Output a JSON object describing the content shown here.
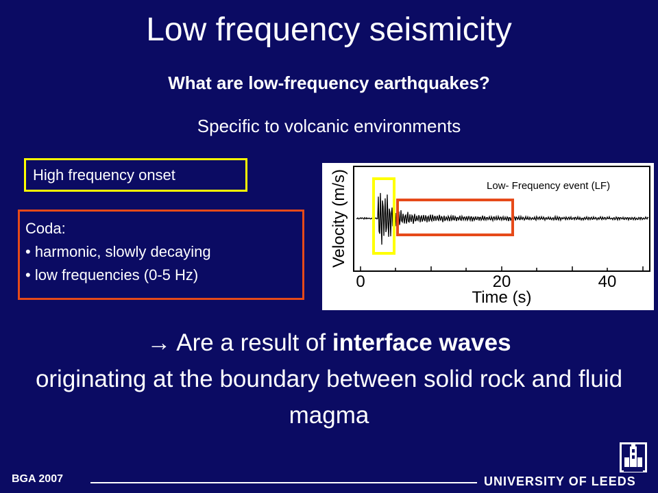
{
  "slide": {
    "title": "Low frequency seismicity",
    "subtitle": "What are low-frequency earthquakes?",
    "lead": "Specific to volcanic environments",
    "onset_box": {
      "label": "High frequency onset",
      "border_color": "#ffff00"
    },
    "coda_box": {
      "heading": "Coda:",
      "items": [
        "• harmonic, slowly decaying",
        "• low frequencies (0-5 Hz)"
      ],
      "border_color": "#e64a19"
    },
    "conclusion": {
      "arrow": "→",
      "prefix": "Are a result of ",
      "emphasis": "interface waves",
      "suffix": "originating at the boundary between solid rock and fluid magma"
    }
  },
  "seismogram": {
    "annotation": "Low- Frequency event (LF)",
    "y_label": "Velocity (m/s)",
    "x_label": "Time (s)",
    "x_ticks": [
      "0",
      "20",
      "40"
    ]
  },
  "footer": {
    "left": "BGA 2007",
    "right": "UNIVERSITY OF LEEDS"
  },
  "colors": {
    "background": "#0b0b63",
    "text": "#ffffff",
    "highlight_onset": "#ffff00",
    "highlight_coda": "#e64a19"
  }
}
